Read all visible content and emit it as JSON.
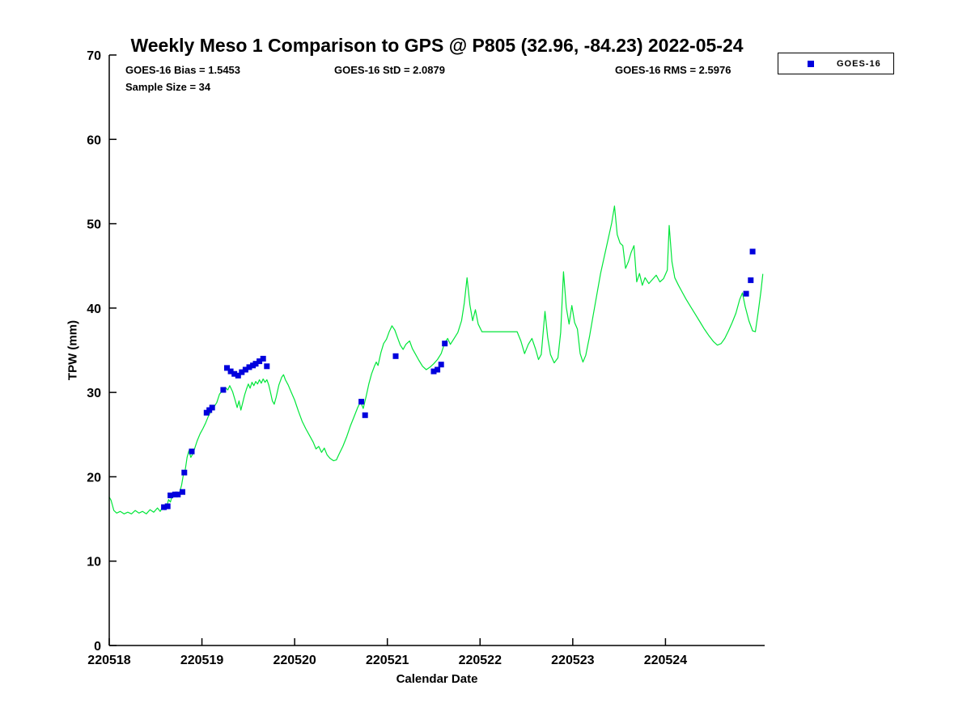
{
  "chart_data": {
    "type": "line+scatter",
    "title": "Weekly Meso 1 Comparison to GPS @ P805 (32.96, -84.23) 2022-05-24",
    "xlabel": "Calendar Date",
    "ylabel": "TPW (mm)",
    "xlim": [
      0,
      7.07
    ],
    "ylim": [
      0,
      70
    ],
    "grid": false,
    "x_units": "days since 220518",
    "yticks": [
      0,
      10,
      20,
      30,
      40,
      50,
      60,
      70
    ],
    "xticks": {
      "positions": [
        0,
        1,
        2,
        3,
        4,
        5,
        6
      ],
      "labels": [
        "220518",
        "220519",
        "220520",
        "220521",
        "220522",
        "220523",
        "220524"
      ]
    },
    "annotations": [
      {
        "id": "bias",
        "text": "GOES-16 Bias = 1.5453"
      },
      {
        "id": "std",
        "text": "GOES-16 StD = 2.0879"
      },
      {
        "id": "rms",
        "text": "GOES-16 RMS = 2.5976"
      },
      {
        "id": "sample",
        "text": "Sample Size = 34"
      }
    ],
    "legend": {
      "position": "top-right-outside",
      "items": [
        {
          "label": "GOES-16",
          "marker": "square",
          "color": "#0000dd"
        }
      ]
    },
    "series": [
      {
        "name": "GPS",
        "type": "line",
        "color": "#00e639",
        "x": [
          0.0,
          0.02,
          0.05,
          0.08,
          0.12,
          0.16,
          0.2,
          0.24,
          0.28,
          0.32,
          0.36,
          0.4,
          0.44,
          0.48,
          0.52,
          0.55,
          0.58,
          0.6,
          0.62,
          0.64,
          0.66,
          0.68,
          0.7,
          0.72,
          0.74,
          0.76,
          0.78,
          0.8,
          0.82,
          0.84,
          0.86,
          0.88,
          0.9,
          0.92,
          0.95,
          0.98,
          1.01,
          1.04,
          1.07,
          1.1,
          1.13,
          1.16,
          1.19,
          1.22,
          1.25,
          1.28,
          1.3,
          1.33,
          1.36,
          1.38,
          1.4,
          1.42,
          1.44,
          1.46,
          1.48,
          1.5,
          1.52,
          1.54,
          1.56,
          1.58,
          1.6,
          1.62,
          1.64,
          1.66,
          1.68,
          1.7,
          1.72,
          1.74,
          1.76,
          1.78,
          1.8,
          1.83,
          1.86,
          1.88,
          1.9,
          1.93,
          1.96,
          2.0,
          2.04,
          2.08,
          2.12,
          2.16,
          2.2,
          2.23,
          2.26,
          2.29,
          2.32,
          2.35,
          2.38,
          2.42,
          2.45,
          2.48,
          2.52,
          2.56,
          2.6,
          2.64,
          2.68,
          2.71,
          2.74,
          2.77,
          2.8,
          2.83,
          2.86,
          2.88,
          2.9,
          2.93,
          2.96,
          2.99,
          3.02,
          3.05,
          3.08,
          3.11,
          3.14,
          3.17,
          3.2,
          3.24,
          3.27,
          3.3,
          3.34,
          3.38,
          3.42,
          3.46,
          3.5,
          3.54,
          3.58,
          3.62,
          3.65,
          3.68,
          3.72,
          3.76,
          3.8,
          3.83,
          3.86,
          3.89,
          3.92,
          3.95,
          3.98,
          4.02,
          4.12,
          4.22,
          4.32,
          4.4,
          4.44,
          4.48,
          4.52,
          4.56,
          4.6,
          4.63,
          4.66,
          4.7,
          4.73,
          4.76,
          4.8,
          4.84,
          4.87,
          4.9,
          4.93,
          4.96,
          4.99,
          5.02,
          5.05,
          5.08,
          5.11,
          5.14,
          5.18,
          5.22,
          5.26,
          5.3,
          5.34,
          5.38,
          5.42,
          5.45,
          5.48,
          5.51,
          5.54,
          5.57,
          5.6,
          5.63,
          5.66,
          5.69,
          5.72,
          5.75,
          5.78,
          5.82,
          5.86,
          5.9,
          5.94,
          5.98,
          6.02,
          6.04,
          6.07,
          6.1,
          6.14,
          6.18,
          6.22,
          6.27,
          6.32,
          6.37,
          6.42,
          6.47,
          6.52,
          6.56,
          6.6,
          6.64,
          6.68,
          6.72,
          6.76,
          6.8,
          6.83,
          6.86,
          6.9,
          6.94,
          6.97,
          7.0,
          7.03,
          7.05
        ],
        "y": [
          17.6,
          17.2,
          16.0,
          15.7,
          15.9,
          15.6,
          15.8,
          15.6,
          16.0,
          15.7,
          15.9,
          15.6,
          16.1,
          15.8,
          16.3,
          15.9,
          16.5,
          16.1,
          16.4,
          17.3,
          17.0,
          17.8,
          17.6,
          18.0,
          17.8,
          18.2,
          19.0,
          20.3,
          20.8,
          22.3,
          23.1,
          22.3,
          22.7,
          23.3,
          24.3,
          25.1,
          25.7,
          26.4,
          27.2,
          27.8,
          28.3,
          28.8,
          29.8,
          30.2,
          30.6,
          30.3,
          30.8,
          30.1,
          29.0,
          28.2,
          29.0,
          27.9,
          28.8,
          29.7,
          30.4,
          31.0,
          30.5,
          31.2,
          30.8,
          31.3,
          31.0,
          31.5,
          31.1,
          31.6,
          31.2,
          31.5,
          30.9,
          30.0,
          29.0,
          28.6,
          29.4,
          30.9,
          31.8,
          32.1,
          31.5,
          30.9,
          30.1,
          29.1,
          27.8,
          26.6,
          25.7,
          24.9,
          24.1,
          23.3,
          23.6,
          22.9,
          23.4,
          22.6,
          22.2,
          21.9,
          22.0,
          22.7,
          23.6,
          24.7,
          26.0,
          27.1,
          28.2,
          28.9,
          28.1,
          29.5,
          31.0,
          32.2,
          33.1,
          33.6,
          33.2,
          34.7,
          35.8,
          36.3,
          37.2,
          37.9,
          37.4,
          36.5,
          35.6,
          35.1,
          35.7,
          36.1,
          35.2,
          34.6,
          33.8,
          33.1,
          32.7,
          33.0,
          33.4,
          33.9,
          34.6,
          35.9,
          36.4,
          35.7,
          36.4,
          37.1,
          38.5,
          40.6,
          43.6,
          40.4,
          38.5,
          39.8,
          38.1,
          37.2,
          37.2,
          37.2,
          37.2,
          37.2,
          36.1,
          34.6,
          35.7,
          36.4,
          35.1,
          33.9,
          34.5,
          39.6,
          36.5,
          34.5,
          33.5,
          34.1,
          37.1,
          44.3,
          40.1,
          38.1,
          40.3,
          38.3,
          37.5,
          34.6,
          33.6,
          34.4,
          36.6,
          39.1,
          41.6,
          44.1,
          46.1,
          48.1,
          50.1,
          52.1,
          48.7,
          47.7,
          47.4,
          44.7,
          45.5,
          46.6,
          47.4,
          43.1,
          44.1,
          42.7,
          43.6,
          42.9,
          43.4,
          43.9,
          43.1,
          43.5,
          44.5,
          49.8,
          45.5,
          43.6,
          42.7,
          41.9,
          41.1,
          40.2,
          39.3,
          38.4,
          37.5,
          36.7,
          36.0,
          35.6,
          35.8,
          36.4,
          37.3,
          38.3,
          39.4,
          41.0,
          41.8,
          40.2,
          38.5,
          37.3,
          37.2,
          39.5,
          42.0,
          44.0
        ]
      },
      {
        "name": "GOES-16",
        "type": "scatter",
        "marker": "square",
        "color": "#0000dd",
        "x": [
          0.59,
          0.63,
          0.66,
          0.71,
          0.74,
          0.79,
          0.81,
          0.89,
          1.05,
          1.08,
          1.11,
          1.23,
          1.27,
          1.31,
          1.35,
          1.39,
          1.43,
          1.47,
          1.51,
          1.55,
          1.58,
          1.62,
          1.66,
          1.7,
          2.72,
          2.76,
          3.09,
          3.5,
          3.54,
          3.58,
          3.62,
          6.87,
          6.92,
          6.94
        ],
        "y": [
          16.4,
          16.5,
          17.8,
          17.9,
          17.9,
          18.2,
          20.5,
          23.0,
          27.6,
          27.9,
          28.2,
          30.3,
          32.9,
          32.5,
          32.2,
          32.0,
          32.4,
          32.7,
          33.0,
          33.2,
          33.4,
          33.7,
          34.0,
          33.1,
          28.9,
          27.3,
          34.3,
          32.5,
          32.7,
          33.3,
          35.8,
          41.7,
          43.3,
          46.7
        ]
      }
    ]
  }
}
